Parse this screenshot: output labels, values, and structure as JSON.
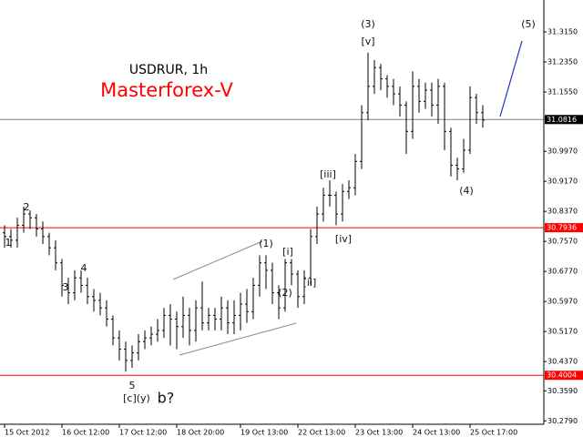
{
  "chart_data": {
    "type": "ohlc",
    "title": "USDRUR, 1h",
    "subtitle": "Masterforex-V",
    "color": "#000000",
    "categories": [
      "15 Oct 2012",
      null,
      null,
      null,
      null,
      null,
      null,
      null,
      null,
      "16 Oct 12:00",
      null,
      null,
      null,
      null,
      null,
      null,
      null,
      null,
      "17 Oct 12:00",
      null,
      null,
      null,
      null,
      null,
      null,
      null,
      null,
      "18 Oct 20:00",
      null,
      null,
      null,
      null,
      null,
      null,
      null,
      null,
      null,
      "19 Oct 13:00",
      null,
      null,
      null,
      null,
      null,
      null,
      null,
      null,
      "22 Oct 13:00",
      null,
      null,
      null,
      null,
      null,
      null,
      null,
      null,
      "23 Oct 13:00",
      null,
      null,
      null,
      null,
      null,
      null,
      null,
      null,
      "24 Oct 13:00",
      null,
      null,
      null,
      null,
      null,
      null,
      null,
      null,
      "25 Oct 17:00",
      null,
      null
    ],
    "open": [
      30.78,
      30.77,
      30.76,
      30.8,
      30.83,
      30.82,
      30.79,
      30.77,
      30.74,
      30.7,
      30.64,
      30.62,
      30.66,
      30.64,
      30.61,
      30.6,
      30.58,
      30.55,
      30.5,
      30.47,
      30.44,
      30.46,
      30.49,
      30.5,
      30.51,
      30.52,
      30.56,
      30.55,
      30.53,
      30.56,
      30.52,
      30.58,
      30.54,
      30.56,
      30.55,
      30.58,
      30.54,
      30.56,
      30.59,
      30.57,
      30.64,
      30.7,
      30.68,
      30.62,
      30.58,
      30.7,
      30.67,
      30.61,
      30.66,
      30.77,
      30.83,
      30.88,
      30.88,
      30.83,
      30.89,
      30.9,
      30.97,
      31.1,
      31.17,
      31.22,
      31.19,
      31.17,
      31.15,
      31.12,
      31.05,
      31.17,
      31.13,
      31.16,
      31.12,
      31.17,
      31.05,
      30.96,
      30.95,
      31.0,
      31.14,
      31.1
    ],
    "high": [
      30.8,
      30.79,
      30.82,
      30.85,
      30.84,
      30.83,
      30.81,
      30.78,
      30.76,
      30.71,
      30.66,
      30.68,
      30.68,
      30.66,
      30.63,
      30.62,
      30.6,
      30.56,
      30.52,
      30.49,
      30.48,
      30.51,
      30.52,
      30.53,
      30.55,
      30.58,
      30.59,
      30.57,
      30.61,
      30.58,
      30.6,
      30.65,
      30.58,
      30.58,
      30.61,
      30.6,
      30.6,
      30.62,
      30.63,
      30.66,
      30.72,
      30.72,
      30.7,
      30.64,
      30.71,
      30.71,
      30.68,
      30.68,
      30.79,
      30.85,
      30.9,
      30.92,
      30.89,
      30.91,
      30.92,
      30.99,
      31.12,
      31.26,
      31.24,
      31.23,
      31.2,
      31.19,
      31.17,
      31.13,
      31.21,
      31.19,
      31.18,
      31.18,
      31.19,
      31.18,
      31.06,
      30.98,
      31.03,
      31.17,
      31.15,
      31.12
    ],
    "low": [
      30.74,
      30.74,
      30.74,
      30.78,
      30.79,
      30.77,
      30.75,
      30.72,
      30.68,
      30.61,
      30.59,
      30.6,
      30.62,
      30.59,
      30.57,
      30.56,
      30.53,
      30.48,
      30.44,
      30.41,
      30.42,
      30.44,
      30.47,
      30.48,
      30.49,
      30.5,
      30.48,
      30.47,
      30.5,
      30.48,
      30.49,
      30.52,
      30.52,
      30.52,
      30.52,
      30.51,
      30.51,
      30.52,
      30.54,
      30.55,
      30.61,
      30.63,
      30.59,
      30.55,
      30.57,
      30.64,
      30.58,
      30.59,
      30.64,
      30.75,
      30.81,
      30.85,
      30.8,
      30.81,
      30.87,
      30.88,
      30.95,
      31.08,
      31.15,
      31.16,
      31.14,
      31.12,
      31.09,
      30.99,
      31.03,
      31.1,
      31.11,
      31.09,
      31.07,
      31.0,
      30.93,
      30.92,
      30.94,
      30.99,
      31.07,
      31.06
    ],
    "close": [
      30.77,
      30.76,
      30.8,
      30.83,
      30.82,
      30.79,
      30.77,
      30.74,
      30.7,
      30.64,
      30.62,
      30.66,
      30.64,
      30.61,
      30.6,
      30.58,
      30.55,
      30.5,
      30.47,
      30.44,
      30.46,
      30.49,
      30.5,
      30.51,
      30.52,
      30.56,
      30.55,
      30.53,
      30.56,
      30.52,
      30.58,
      30.54,
      30.56,
      30.55,
      30.58,
      30.54,
      30.56,
      30.59,
      30.57,
      30.64,
      30.7,
      30.68,
      30.62,
      30.58,
      30.7,
      30.67,
      30.61,
      30.66,
      30.77,
      30.83,
      30.88,
      30.88,
      30.83,
      30.89,
      30.9,
      30.97,
      31.1,
      31.17,
      31.22,
      31.19,
      31.17,
      31.15,
      31.12,
      31.05,
      31.17,
      31.13,
      31.16,
      31.12,
      31.17,
      31.05,
      30.96,
      30.95,
      31.0,
      31.14,
      31.1,
      31.08
    ],
    "ylim": [
      30.27,
      31.4
    ],
    "yticks": [
      {
        "value": 31.315,
        "label": "31.3150"
      },
      {
        "value": 31.235,
        "label": "31.2350"
      },
      {
        "value": 31.155,
        "label": "31.1550"
      },
      {
        "value": 30.997,
        "label": "30.9970"
      },
      {
        "value": 30.917,
        "label": "30.9170"
      },
      {
        "value": 30.837,
        "label": "30.8370"
      },
      {
        "value": 30.757,
        "label": "30.7570"
      },
      {
        "value": 30.677,
        "label": "30.6770"
      },
      {
        "value": 30.597,
        "label": "30.5970"
      },
      {
        "value": 30.517,
        "label": "30.5170"
      },
      {
        "value": 30.437,
        "label": "30.4370"
      },
      {
        "value": 30.359,
        "label": "30.3590"
      },
      {
        "value": 30.279,
        "label": "30.2790"
      }
    ],
    "hlines": [
      {
        "value": 31.0816,
        "color": "#808080",
        "label_color": "#000000"
      },
      {
        "value": 30.7936,
        "color": "#ff0000",
        "label_color": "#ff0000"
      },
      {
        "value": 30.4004,
        "color": "#ff0000",
        "label_color": "#ff0000"
      }
    ],
    "annotations": [
      "(3)",
      "[v]",
      "(5)",
      "(4)",
      "[iii]",
      "[iv]",
      "(1)",
      "[i]",
      "(2)",
      "[ii]",
      "1",
      "2",
      "3",
      "4",
      "5",
      "[c](y)",
      "b?"
    ]
  }
}
